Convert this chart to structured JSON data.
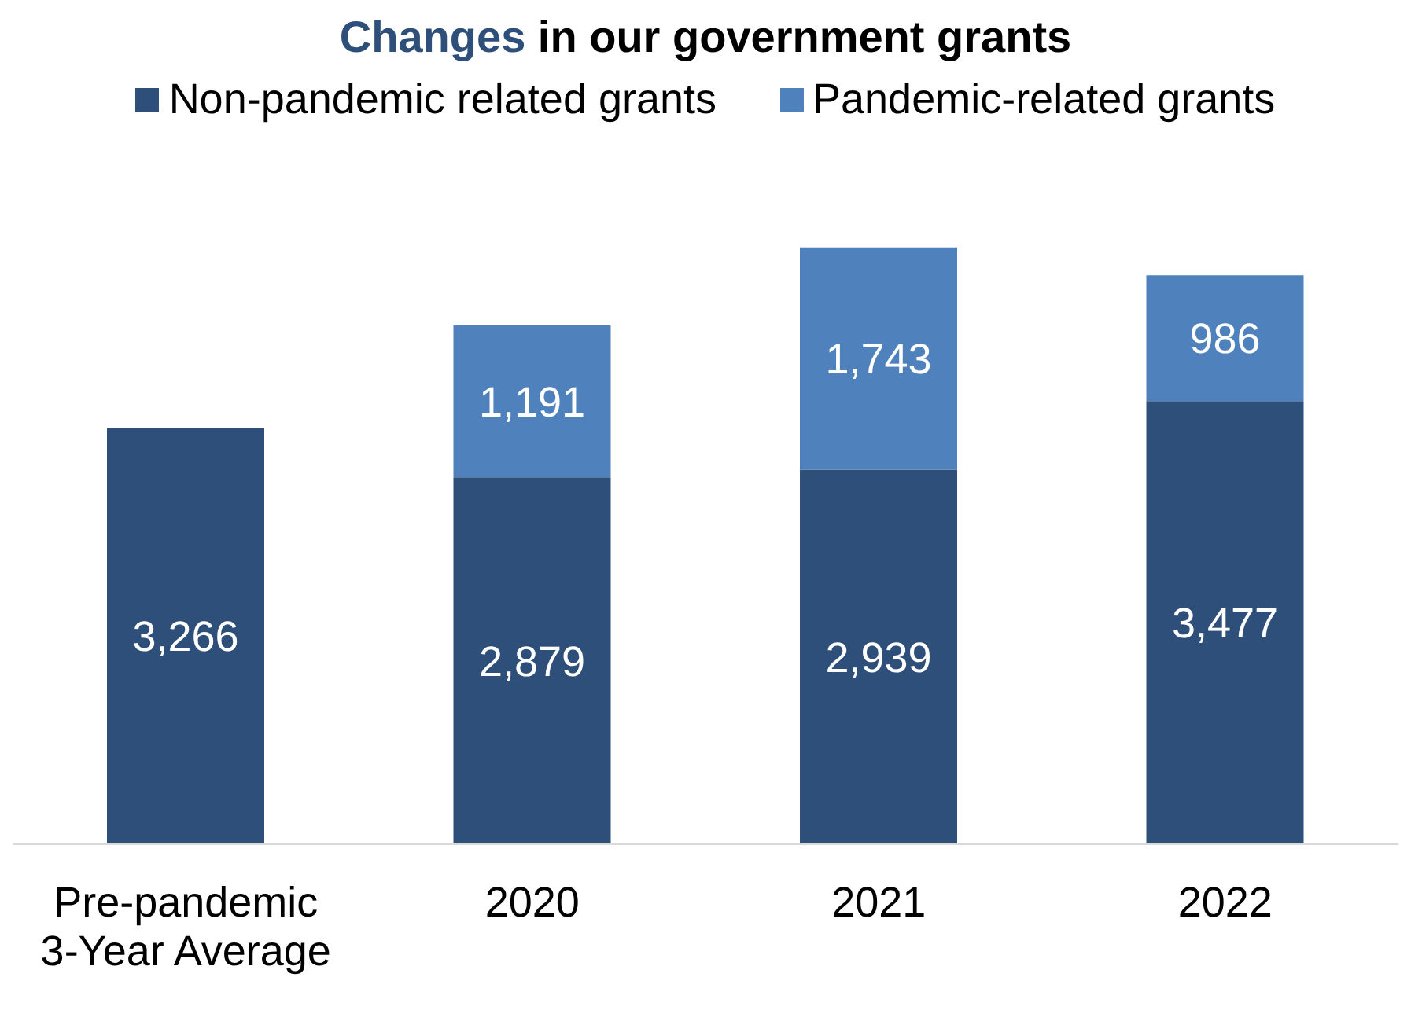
{
  "chart_data": {
    "type": "bar",
    "title": "Changes in our government grants",
    "categories": [
      "Pre-pandemic 3-Year Average",
      "2020",
      "2021",
      "2022"
    ],
    "stacked": true,
    "legend": "top",
    "grid": false,
    "series": [
      {
        "name": "Non-pandemic related grants",
        "color": "#2e4f79",
        "values": [
          3266,
          2879,
          2939,
          3477
        ],
        "value_labels": [
          "3,266",
          "2,879",
          "2,939",
          "3,477"
        ]
      },
      {
        "name": "Pandemic-related grants",
        "color": "#4f81bd",
        "values": [
          null,
          1191,
          1743,
          986
        ],
        "value_labels": [
          null,
          "1,191",
          "1,743",
          "986"
        ]
      }
    ]
  }
}
